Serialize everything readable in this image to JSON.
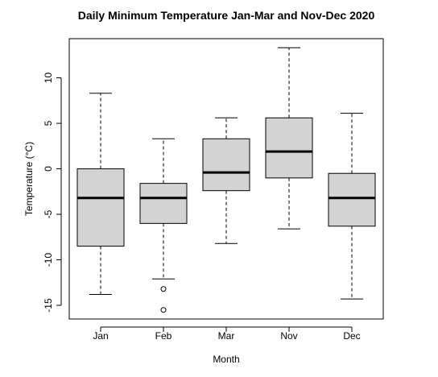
{
  "chart_data": {
    "type": "boxplot",
    "title": "Daily Minimum Temperature Jan-Mar and Nov-Dec 2020",
    "xlabel": "Month",
    "ylabel": "Temperature (°C)",
    "categories": [
      "Jan",
      "Feb",
      "Mar",
      "Nov",
      "Dec"
    ],
    "boxes": [
      {
        "category": "Jan",
        "whisker_low": -13.8,
        "q1": -8.5,
        "median": -3.2,
        "q3": 0.0,
        "whisker_high": 8.3,
        "outliers": []
      },
      {
        "category": "Feb",
        "whisker_low": -12.1,
        "q1": -6.0,
        "median": -3.2,
        "q3": -1.6,
        "whisker_high": 3.3,
        "outliers": [
          -13.2,
          -15.5
        ]
      },
      {
        "category": "Mar",
        "whisker_low": -8.2,
        "q1": -2.4,
        "median": -0.4,
        "q3": 3.3,
        "whisker_high": 5.6,
        "outliers": []
      },
      {
        "category": "Nov",
        "whisker_low": -6.6,
        "q1": -1.0,
        "median": 1.9,
        "q3": 5.6,
        "whisker_high": 13.3,
        "outliers": []
      },
      {
        "category": "Dec",
        "whisker_low": -14.3,
        "q1": -6.3,
        "median": -3.2,
        "q3": -0.5,
        "whisker_high": 6.1,
        "outliers": []
      }
    ],
    "yticks": [
      -15,
      -10,
      -5,
      0,
      5,
      10
    ],
    "ylim": [
      -16.5,
      14.3
    ],
    "grid": false,
    "colors": {
      "box_fill": "#d3d3d3",
      "line": "#000000"
    }
  }
}
